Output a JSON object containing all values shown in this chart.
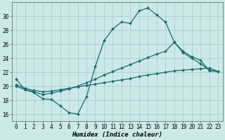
{
  "bg_color": "#cce8e8",
  "grid_color": "#aad0d0",
  "line_color": "#1a6b6b",
  "line_width": 0.9,
  "marker": "D",
  "marker_size": 2.0,
  "xlabel": "Humidex (Indice chaleur)",
  "xlabel_fontsize": 6.5,
  "tick_fontsize": 5.5,
  "ylim": [
    15,
    32
  ],
  "yticks": [
    16,
    18,
    20,
    22,
    24,
    26,
    28,
    30
  ],
  "xlim": [
    -0.5,
    23.5
  ],
  "xticks": [
    0,
    1,
    2,
    3,
    4,
    5,
    6,
    7,
    8,
    9,
    10,
    11,
    12,
    13,
    14,
    15,
    16,
    17,
    18,
    19,
    20,
    21,
    22,
    23
  ],
  "curve1_x": [
    0,
    1,
    2,
    3,
    4,
    5,
    6,
    7,
    8,
    9,
    10,
    11,
    12,
    13,
    14,
    15,
    16,
    17,
    18,
    19,
    20,
    21,
    22,
    23
  ],
  "curve1_y": [
    21.0,
    19.5,
    19.1,
    18.2,
    18.1,
    17.2,
    16.2,
    16.0,
    18.5,
    22.8,
    26.5,
    28.2,
    29.2,
    29.0,
    30.8,
    31.2,
    30.2,
    29.2,
    26.3,
    25.0,
    24.2,
    23.7,
    22.2,
    22.1
  ],
  "curve2_x": [
    0,
    1,
    2,
    3,
    4,
    5,
    6,
    7,
    8,
    9,
    10,
    11,
    12,
    13,
    14,
    15,
    16,
    17,
    18,
    19,
    20,
    21,
    22,
    23
  ],
  "curve2_y": [
    20.0,
    19.5,
    19.2,
    18.8,
    19.0,
    19.3,
    19.6,
    20.0,
    20.5,
    21.0,
    21.6,
    22.1,
    22.6,
    23.1,
    23.6,
    24.1,
    24.6,
    25.0,
    26.3,
    24.8,
    24.0,
    23.2,
    22.3,
    22.1
  ],
  "curve3_x": [
    0,
    1,
    2,
    3,
    4,
    5,
    6,
    7,
    8,
    9,
    10,
    11,
    12,
    13,
    14,
    15,
    16,
    17,
    18,
    19,
    20,
    21,
    22,
    23
  ],
  "curve3_y": [
    20.2,
    19.7,
    19.4,
    19.2,
    19.3,
    19.5,
    19.7,
    19.9,
    20.1,
    20.3,
    20.5,
    20.7,
    20.9,
    21.1,
    21.4,
    21.6,
    21.8,
    22.0,
    22.2,
    22.3,
    22.4,
    22.5,
    22.6,
    22.1
  ]
}
